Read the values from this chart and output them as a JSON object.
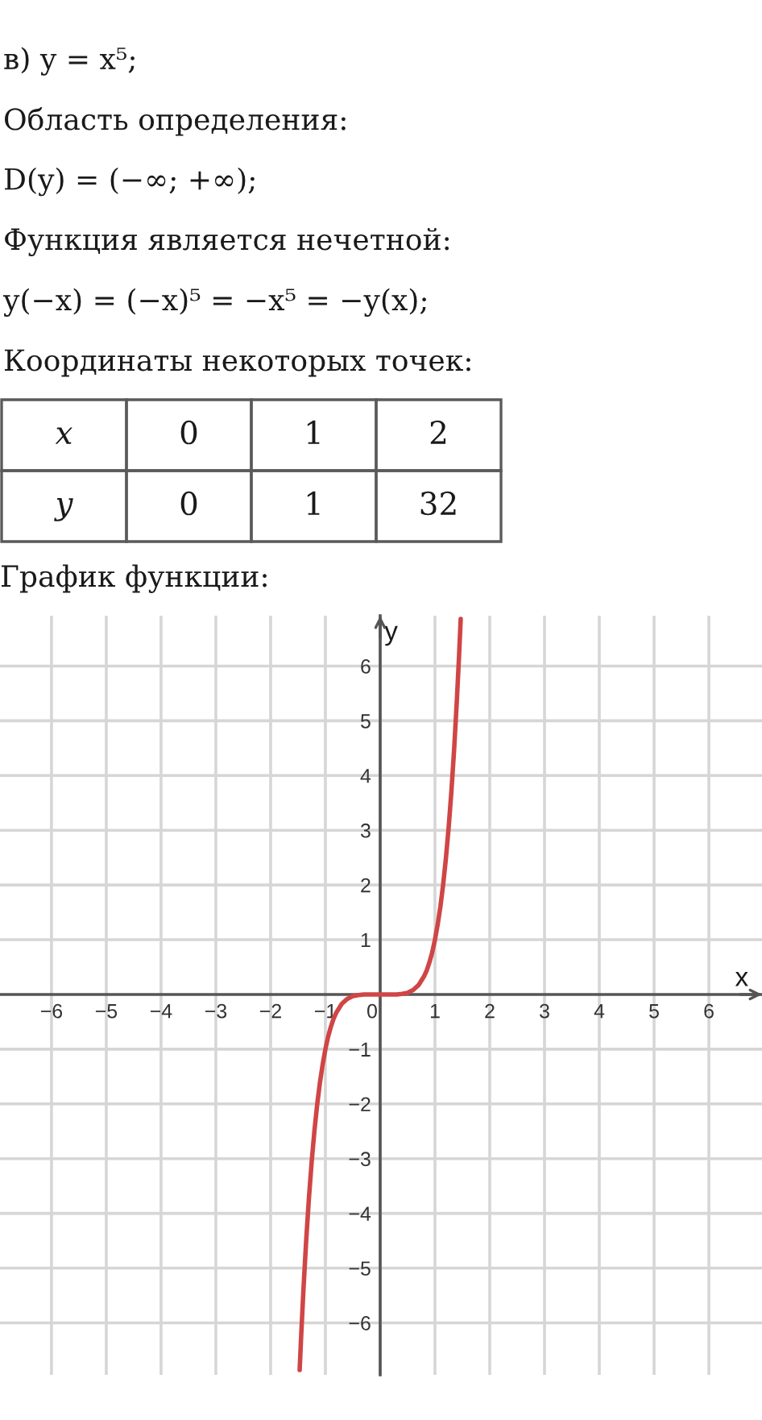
{
  "chart_data": [
    {
      "type": "other",
      "title": "в) y = x⁵;",
      "annotations": [
        "Область определения:",
        "D(y) = (−∞; +∞);",
        "Функция является нечетной:",
        "y(−x) = (−x)⁵ = −x⁵ = −y(x);",
        "Координаты некоторых точек:"
      ],
      "xlabel": "x",
      "ylabel": "y",
      "categories": [
        "0",
        "1",
        "2"
      ],
      "values": [
        0,
        1,
        32
      ],
      "data_labels": true
    },
    {
      "type": "line",
      "title": "График функции:",
      "xlabel": "x",
      "ylabel": "y",
      "x": [
        -1.47,
        -1.44,
        -1.4,
        -1.35,
        -1.3,
        -1.25,
        -1.2,
        -1.15,
        -1.1,
        -1.05,
        -1,
        -0.95,
        -0.9,
        -0.85,
        -0.8,
        -0.7,
        -0.6,
        -0.5,
        -0.4,
        -0.3,
        -0.2,
        0,
        0.2,
        0.3,
        0.4,
        0.5,
        0.6,
        0.7,
        0.8,
        0.85,
        0.9,
        0.95,
        1,
        1.05,
        1.1,
        1.15,
        1.2,
        1.25,
        1.3,
        1.35,
        1.4,
        1.44,
        1.47
      ],
      "values": [
        -6.86,
        -6.19,
        -5.38,
        -4.48,
        -3.71,
        -3.05,
        -2.49,
        -2.01,
        -1.61,
        -1.28,
        -1,
        -0.77,
        -0.59,
        -0.44,
        -0.33,
        -0.17,
        -0.08,
        -0.03,
        -0.01,
        0,
        0,
        0,
        0,
        0,
        0.01,
        0.03,
        0.08,
        0.17,
        0.33,
        0.44,
        0.59,
        0.77,
        1,
        1.28,
        1.61,
        2.01,
        2.49,
        3.05,
        3.71,
        4.48,
        5.38,
        6.19,
        6.86
      ],
      "color": "#d04545",
      "xlim": [
        -6.94,
        6.97
      ],
      "ylim": [
        -6.95,
        6.92
      ],
      "xticks": [
        -6,
        -5,
        -4,
        -3,
        -2,
        -1,
        0,
        1,
        2,
        3,
        4,
        5,
        6
      ],
      "yticks": [
        -6,
        -5,
        -4,
        -3,
        -2,
        -1,
        1,
        2,
        3,
        4,
        5,
        6
      ],
      "grid": true
    }
  ]
}
